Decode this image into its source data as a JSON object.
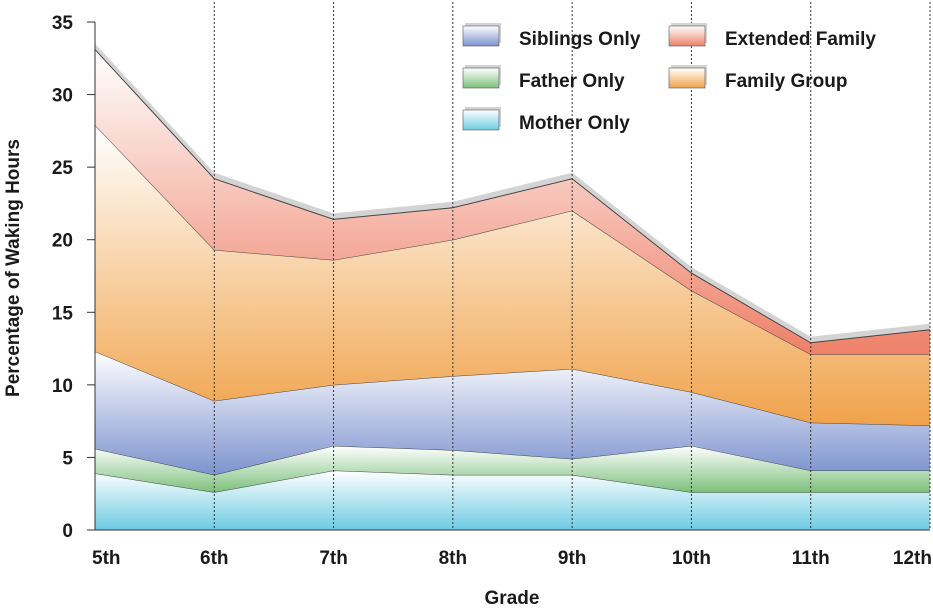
{
  "chart_data": {
    "type": "area",
    "title": "",
    "xlabel": "Grade",
    "ylabel": "Percentage of Waking Hours",
    "categories": [
      "5th",
      "6th",
      "7th",
      "8th",
      "9th",
      "10th",
      "11th",
      "12th"
    ],
    "ylim": [
      0,
      35
    ],
    "yticks": [
      0,
      5,
      10,
      15,
      20,
      25,
      30,
      35
    ],
    "stacked": true,
    "grid": "vertical dotted lines at each grade",
    "legend_position": "top-right",
    "series": [
      {
        "name": "Mother Only",
        "values": [
          3.9,
          2.6,
          4.1,
          3.8,
          3.8,
          2.6,
          2.6,
          2.6
        ],
        "color": "#6ccbe2"
      },
      {
        "name": "Father Only",
        "values": [
          1.7,
          1.2,
          1.7,
          1.7,
          1.1,
          3.2,
          1.5,
          1.5
        ],
        "color": "#7cc07c"
      },
      {
        "name": "Siblings Only",
        "values": [
          6.7,
          5.1,
          4.2,
          5.1,
          6.2,
          3.7,
          3.3,
          3.1
        ],
        "color": "#7d93cf"
      },
      {
        "name": "Family Group",
        "values": [
          15.6,
          10.4,
          8.6,
          9.4,
          10.9,
          7.0,
          4.7,
          4.9
        ],
        "color": "#f0a24a"
      },
      {
        "name": "Extended Family",
        "values": [
          5.2,
          4.9,
          2.8,
          2.2,
          2.2,
          1.2,
          0.8,
          1.7
        ],
        "color": "#ee8068"
      }
    ],
    "legend_order": [
      "Siblings Only",
      "Extended Family",
      "Father Only",
      "Family Group",
      "Mother Only"
    ],
    "shadow_color": "#d3d3d3"
  }
}
